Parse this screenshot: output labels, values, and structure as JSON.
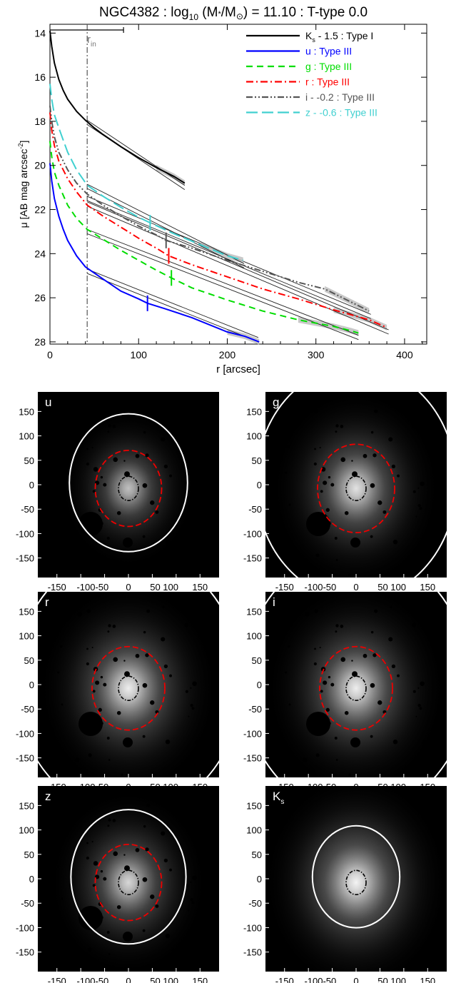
{
  "figure": {
    "title_prefix": "NGC4382 : log",
    "title_sub": "10",
    "title_mid": " (M",
    "title_star": "*",
    "title_slash": "/M",
    "title_sun": "⊙",
    "title_suffix": ") = 11.10 : T-type 0.0"
  },
  "chart_data": [
    {
      "type": "line",
      "xlabel": "r [arcsec]",
      "ylabel": "μ [AB mag arcsec",
      "ylabel_sup": "-2",
      "ylabel_end": "]",
      "xlim": [
        0,
        425
      ],
      "ylim": [
        28.1,
        13.6
      ],
      "x_ticks": [
        0,
        100,
        200,
        300,
        400
      ],
      "y_ticks": [
        14,
        16,
        18,
        20,
        22,
        24,
        26,
        28
      ],
      "rin_label": "r",
      "rin_sub": "in",
      "rin": 42,
      "rin_bar": [
        0,
        83
      ],
      "series": [
        {
          "name": "K",
          "name_sub": "s",
          "name_rest": " - 1.5 : Type I",
          "color": "#000000",
          "dash": "solid",
          "x": [
            0,
            2,
            5,
            10,
            15,
            20,
            30,
            40,
            50,
            60,
            80,
            100,
            120,
            140,
            152
          ],
          "y": [
            13.9,
            14.6,
            15.35,
            16.1,
            16.6,
            17.0,
            17.55,
            17.95,
            18.3,
            18.6,
            19.15,
            19.65,
            20.1,
            20.5,
            20.8
          ],
          "shade_from": 120,
          "fit": [
            [
              42,
              18.05
            ],
            [
              152,
              21.0
            ]
          ]
        },
        {
          "name": "u : Type III",
          "color": "#0000ff",
          "dash": "solid",
          "x": [
            0,
            2,
            5,
            10,
            15,
            20,
            30,
            40,
            60,
            80,
            100,
            110,
            130,
            160,
            200,
            220,
            236
          ],
          "y": [
            19.9,
            20.7,
            21.5,
            22.3,
            22.9,
            23.4,
            24.1,
            24.6,
            25.15,
            25.7,
            26.05,
            26.25,
            26.5,
            26.9,
            27.55,
            27.75,
            28.0
          ],
          "shade_from": 180,
          "break": 110,
          "fit": [
            [
              42,
              24.8
            ],
            [
              235,
              27.9
            ]
          ]
        },
        {
          "name": "g : Type III",
          "color": "#00dd00",
          "dash": "dash",
          "x": [
            0,
            2,
            5,
            10,
            20,
            30,
            42,
            60,
            80,
            100,
            120,
            137,
            160,
            200,
            240,
            280,
            320,
            340,
            348
          ],
          "y": [
            18.9,
            19.6,
            20.3,
            20.9,
            21.8,
            22.4,
            22.9,
            23.35,
            23.85,
            24.3,
            24.75,
            25.1,
            25.55,
            26.1,
            26.6,
            27.0,
            27.3,
            27.5,
            27.6
          ],
          "shade_from": 280,
          "break": 137,
          "fit": [
            [
              42,
              23.0
            ],
            [
              348,
              27.8
            ]
          ]
        },
        {
          "name": "r : Type III",
          "color": "#ff0000",
          "dash": "dashdot",
          "x": [
            0,
            2,
            5,
            10,
            20,
            30,
            42,
            60,
            80,
            100,
            120,
            134,
            160,
            200,
            240,
            280,
            320,
            360,
            380
          ],
          "y": [
            17.6,
            18.4,
            19.1,
            19.8,
            20.6,
            21.2,
            21.8,
            22.3,
            22.8,
            23.3,
            23.75,
            24.1,
            24.5,
            25.05,
            25.6,
            26.05,
            26.55,
            27.0,
            27.35
          ],
          "shade_from": 310,
          "break": 134,
          "fit": [
            [
              42,
              21.75
            ],
            [
              382,
              27.55
            ]
          ]
        },
        {
          "name": "i - -0.2 : Type III",
          "color": "#555555",
          "dash": "dashdotdot",
          "x": [
            0,
            2,
            5,
            10,
            20,
            30,
            42,
            60,
            80,
            100,
            120,
            131,
            160,
            200,
            240,
            280,
            310,
            340,
            360
          ],
          "y": [
            17.3,
            18.0,
            18.7,
            19.4,
            20.2,
            20.8,
            21.3,
            21.8,
            22.3,
            22.75,
            23.15,
            23.4,
            23.75,
            24.3,
            24.8,
            25.3,
            25.6,
            26.2,
            26.6
          ],
          "shade_from": 285,
          "break": 131,
          "fit": [
            [
              42,
              21.5
            ],
            [
              362,
              26.85
            ]
          ]
        },
        {
          "name": "z - -0.6 : Type III",
          "color": "#40d0d0",
          "dash": "longdash",
          "x": [
            0,
            2,
            5,
            10,
            20,
            30,
            42,
            60,
            80,
            100,
            113,
            140,
            170,
            200,
            218
          ],
          "y": [
            16.3,
            17.0,
            17.7,
            18.3,
            19.4,
            20.2,
            20.9,
            21.4,
            21.9,
            22.35,
            22.6,
            23.1,
            23.6,
            24.1,
            24.3
          ],
          "shade_from": 170,
          "break": 113,
          "fit": [
            [
              42,
              20.95
            ],
            [
              219,
              24.55
            ]
          ]
        }
      ]
    },
    {
      "type": "heatmap",
      "x_ticks": [
        "-150",
        "-100",
        "-50",
        "0",
        "50",
        "100",
        "150"
      ],
      "y_ticks": [
        "150",
        "100",
        "50",
        "0",
        "-50",
        "-100",
        "-150"
      ],
      "range": [
        -190,
        190
      ],
      "panels": [
        {
          "label": "u",
          "label_sub": "",
          "brightness": 0.45,
          "stars": true,
          "red_ellipse": 0.62,
          "white_ellipse": 1.15
        },
        {
          "label": "g",
          "label_sub": "",
          "brightness": 0.75,
          "stars": true,
          "red_ellipse": 0.72,
          "white_ellipse": 1.95
        },
        {
          "label": "r",
          "label_sub": "",
          "brightness": 0.85,
          "stars": true,
          "red_ellipse": 0.68,
          "white_ellipse": 2.2
        },
        {
          "label": "i",
          "label_sub": "",
          "brightness": 0.85,
          "stars": true,
          "red_ellipse": 0.68,
          "white_ellipse": 2.2
        },
        {
          "label": "z",
          "label_sub": "",
          "brightness": 0.65,
          "stars": true,
          "red_ellipse": 0.62,
          "white_ellipse": 1.12
        },
        {
          "label": "K",
          "label_sub": "s",
          "brightness": 0.9,
          "stars": false,
          "red_ellipse": 0,
          "white_ellipse": 0.85
        }
      ]
    }
  ]
}
